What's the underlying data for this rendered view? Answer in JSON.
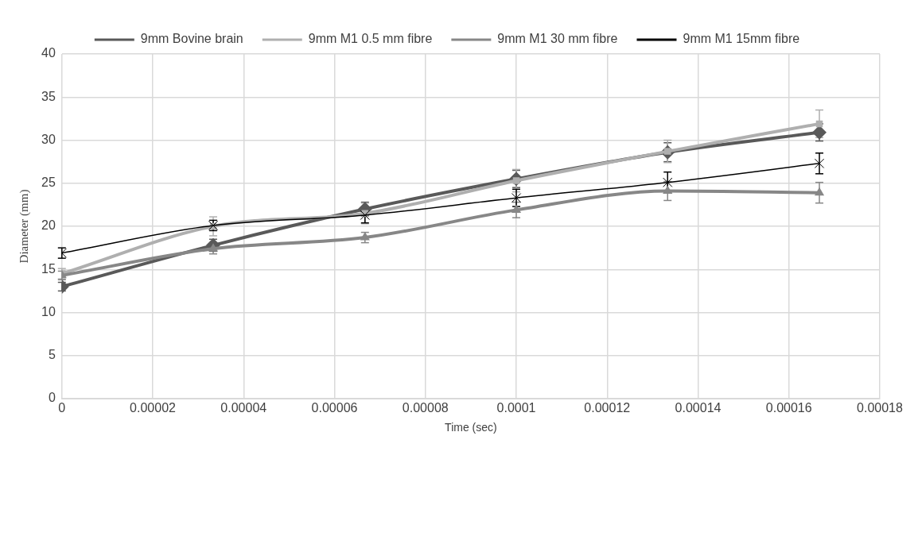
{
  "chart_data": {
    "type": "line",
    "xlabel": "Time (sec)",
    "ylabel": "Diameter (mm)",
    "x": [
      0,
      3.33e-05,
      6.67e-05,
      0.0001,
      0.0001333,
      0.0001667
    ],
    "series": [
      {
        "name": "9mm Bovine brain",
        "color": "#595959",
        "marker": "diamond",
        "values": [
          13.0,
          17.8,
          22.0,
          25.5,
          28.6,
          30.9
        ],
        "errors": [
          0.5,
          0.7,
          0.8,
          1.0,
          1.1,
          1.0
        ]
      },
      {
        "name": "9mm M1 0.5 mm fibre",
        "color": "#afafaf",
        "marker": "square",
        "values": [
          14.5,
          20.0,
          21.5,
          25.3,
          28.7,
          31.9
        ],
        "errors": [
          0.6,
          1.1,
          1.2,
          1.3,
          1.3,
          1.6
        ]
      },
      {
        "name": "9mm M1 30 mm fibre",
        "color": "#878787",
        "marker": "triangle",
        "values": [
          14.3,
          17.4,
          18.7,
          21.9,
          24.1,
          23.9
        ],
        "errors": [
          0.5,
          0.6,
          0.6,
          0.9,
          1.1,
          1.2
        ]
      },
      {
        "name": "9mm M1 15mm fibre",
        "color": "#000000",
        "marker": "cross",
        "values": [
          16.9,
          20.1,
          21.3,
          23.3,
          25.1,
          27.3
        ],
        "errors": [
          0.6,
          0.6,
          0.9,
          1.0,
          1.2,
          1.2
        ]
      }
    ],
    "xlim": [
      0,
      0.00018
    ],
    "xticks": [
      0,
      {
        "value": 2e-05,
        "label": "0.00002"
      },
      {
        "value": 4e-05,
        "label": "0.00004"
      },
      {
        "value": 6e-05,
        "label": "0.00006"
      },
      {
        "value": 8e-05,
        "label": "0.00008"
      },
      0.0001,
      0.00012,
      0.00014,
      0.00016,
      0.00018
    ],
    "ylim": [
      0,
      40
    ],
    "yticks": [
      0,
      5,
      10,
      15,
      20,
      25,
      30,
      35,
      40
    ],
    "grid": true,
    "legend": "top"
  }
}
